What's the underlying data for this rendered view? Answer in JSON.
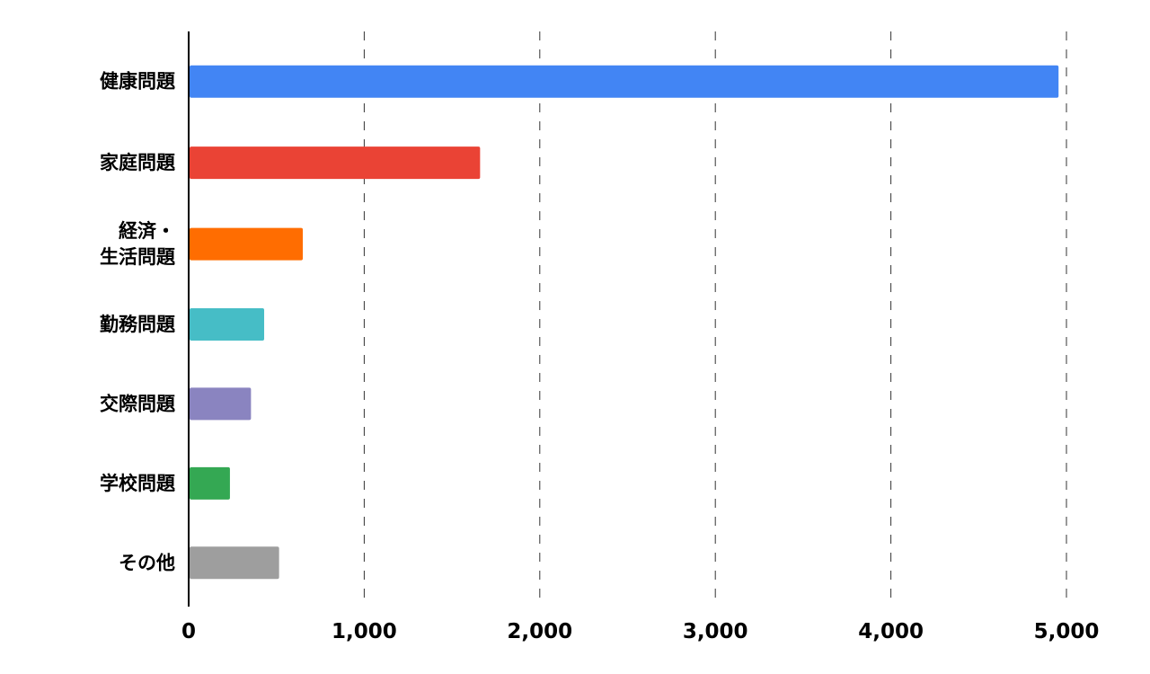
{
  "chart_data": {
    "type": "bar",
    "orientation": "horizontal",
    "categories": [
      [
        "健康問題"
      ],
      [
        "家庭問題"
      ],
      [
        "経済・",
        "生活問題"
      ],
      [
        "勤務問題"
      ],
      [
        "交際問題"
      ],
      [
        "学校問題"
      ],
      [
        "その他"
      ]
    ],
    "values": [
      4955,
      1660,
      650,
      430,
      355,
      235,
      515
    ],
    "colors": [
      "#4285f4",
      "#ea4335",
      "#ff6d01",
      "#46bdc6",
      "#8a84c0",
      "#34a853",
      "#9e9e9e"
    ],
    "xlim": [
      0,
      5000
    ],
    "x_ticks": [
      0,
      1000,
      2000,
      3000,
      4000,
      5000
    ],
    "x_tick_labels": [
      "0",
      "1,000",
      "2,000",
      "3,000",
      "4,000",
      "5,000"
    ],
    "grid": "vertical-dashed",
    "title": "",
    "xlabel": "",
    "ylabel": ""
  }
}
